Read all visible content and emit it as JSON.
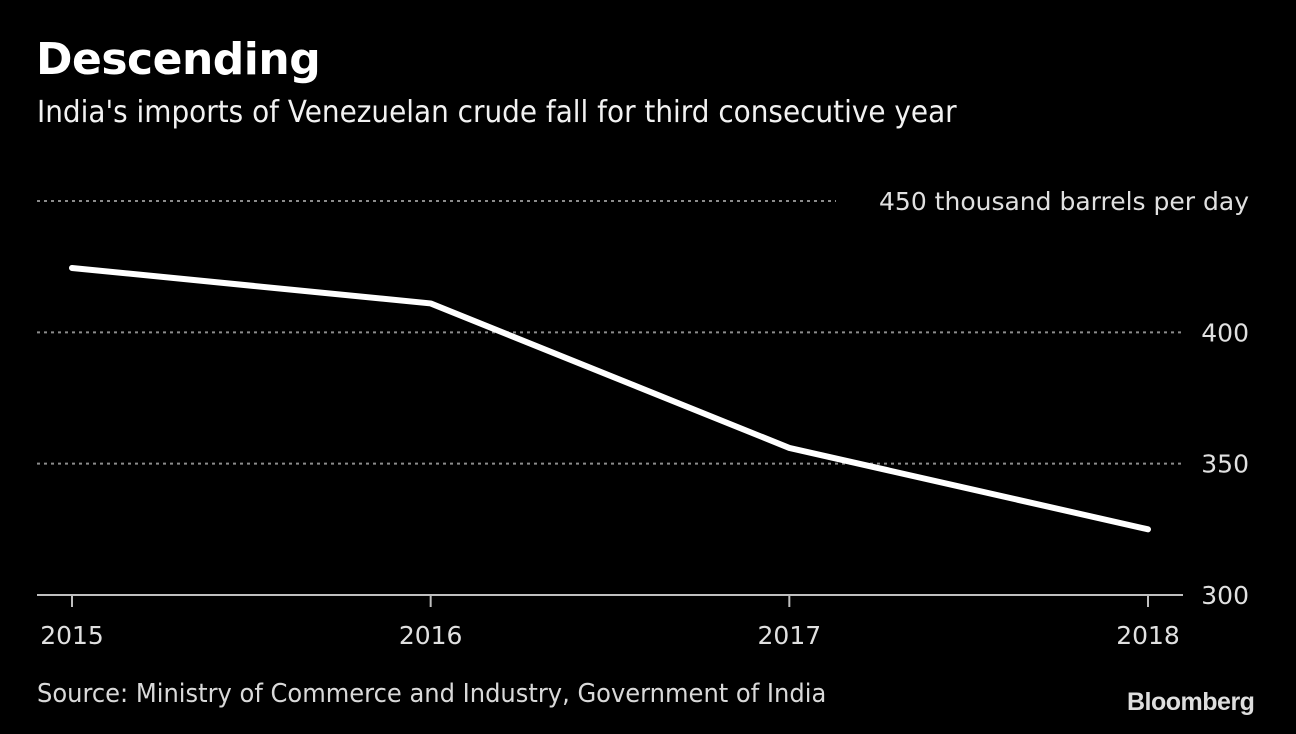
{
  "header": {
    "title": "Descending",
    "subtitle": "India's imports of Venezuelan crude fall for third consecutive year"
  },
  "footer": {
    "source": "Source: Ministry of Commerce and Industry, Government of India",
    "logo": "Bloomberg"
  },
  "colors": {
    "background": "#000000",
    "line": "#ffffff",
    "grid": "#8c8c8c",
    "axis": "#bfbfbf",
    "text": "#e0e0e0"
  },
  "chart_data": {
    "type": "line",
    "title": "Descending",
    "subtitle": "India's imports of Venezuelan crude fall for third consecutive year",
    "xlabel": "",
    "ylabel": "thousand barrels per day",
    "x": [
      "2015",
      "2016",
      "2017",
      "2018"
    ],
    "series": [
      {
        "name": "India imports of Venezuelan crude",
        "values": [
          424.5,
          411,
          356,
          325
        ]
      }
    ],
    "ylim": [
      300,
      450
    ],
    "yticks": [
      300,
      350,
      400,
      450
    ],
    "ytick_labels": [
      "300",
      "350",
      "400",
      "450 thousand barrels per day"
    ],
    "y_axis_side": "right",
    "grid": true,
    "grid_style": "dotted",
    "legend": "none"
  }
}
